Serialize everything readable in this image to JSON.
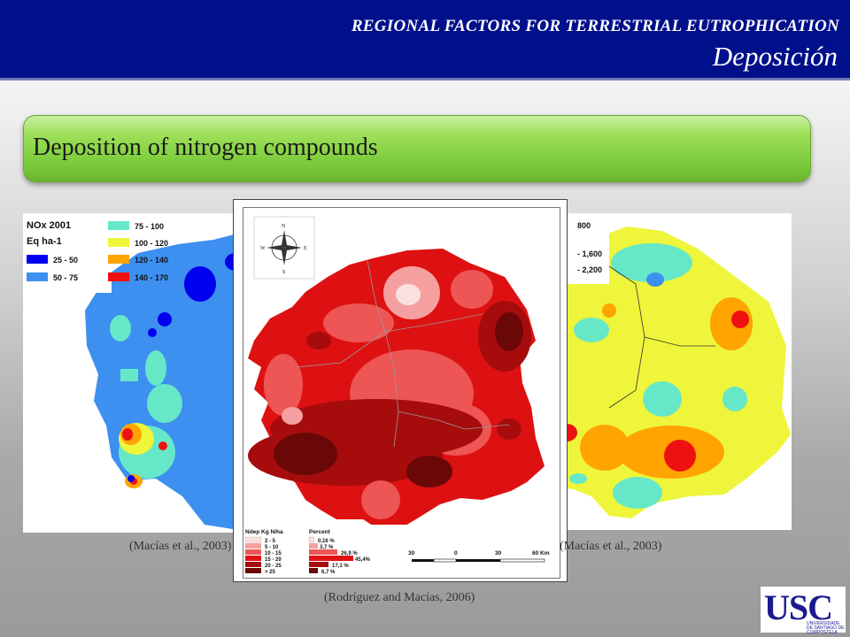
{
  "header": {
    "title": "REGIONAL FACTORS FOR TERRESTRIAL EUTROPHICATION",
    "subtitle": "Deposición"
  },
  "banner": {
    "text": "Deposition of nitrogen compounds"
  },
  "maps": {
    "left": {
      "legend_title": "NOx 2001",
      "legend_unit": "Eq ha-1",
      "classes": [
        {
          "label": "25 - 50",
          "color": "#0000ee"
        },
        {
          "label": "50 - 75",
          "color": "#3d8ff0"
        },
        {
          "label": "75 - 100",
          "color": "#66e8c8"
        },
        {
          "label": "100 - 120",
          "color": "#eef53a"
        },
        {
          "label": "120 - 140",
          "color": "#ffa400"
        },
        {
          "label": "140 - 170",
          "color": "#ee1111"
        }
      ],
      "caption": "(Macías et al., 2003)"
    },
    "center": {
      "legend_title": "Ndep  Kg N/ha",
      "percent_title": "Percent",
      "classes": [
        {
          "label": "2 - 5",
          "percent": "0,16 %",
          "color": "#fbe0e0"
        },
        {
          "label": "5 - 10",
          "percent": "3,7 %",
          "color": "#f5a0a0"
        },
        {
          "label": "10 - 15",
          "percent": "26,9 %",
          "color": "#ee5555"
        },
        {
          "label": "15 - 20",
          "percent": "45,4%",
          "color": "#dd1111"
        },
        {
          "label": "20 - 25",
          "percent": "17,1 %",
          "color": "#a60c0c"
        },
        {
          "label": "> 25",
          "percent": "6,7 %",
          "color": "#6a0808"
        }
      ],
      "scale_labels": [
        "30",
        "0",
        "30",
        "60 Km"
      ],
      "compass": {
        "n": "N",
        "s": "S",
        "e": "E",
        "w": "W"
      },
      "caption": "(Rodríguez and Macías, 2006)"
    },
    "right": {
      "legend_values": [
        "800",
        "- 1,600",
        "- 2,200"
      ],
      "caption": "(Macías et al., 2003)"
    }
  },
  "logo": {
    "text": "USC",
    "sub": "UNIVERSIDADE DE SANTIAGO DE COMPOSTELA"
  }
}
